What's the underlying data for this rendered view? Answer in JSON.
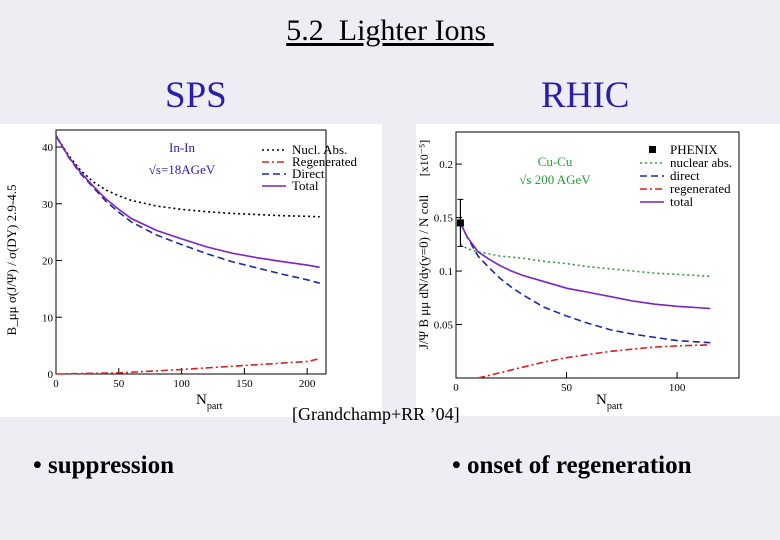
{
  "slide": {
    "title": "5.2  Lighter Ions ",
    "left_label": "SPS",
    "right_label": "RHIC",
    "citation": "[Grandchamp+RR ’04]",
    "bullet_left": "• suppression",
    "bullet_right": "• onset of regeneration"
  },
  "chart_data": [
    {
      "type": "line",
      "title": "In-In",
      "subtitle": "√s=18AGeV",
      "xlabel": "N",
      "xlabel_sub": "part",
      "ylabel": "B_μμ σ(J/Ψ) / σ(DY) 2.9-4.5",
      "xlim": [
        0,
        215
      ],
      "ylim": [
        0,
        43
      ],
      "xticks": [
        0,
        50,
        100,
        150,
        200
      ],
      "yticks": [
        0,
        10,
        20,
        30,
        40
      ],
      "legend_position": "top-right",
      "series": [
        {
          "name": "Nucl. Abs.",
          "style": "dotted",
          "color": "#000000",
          "x": [
            0,
            10,
            20,
            30,
            40,
            50,
            60,
            80,
            100,
            120,
            140,
            160,
            180,
            200,
            210
          ],
          "y": [
            42,
            38.5,
            35.8,
            33.8,
            32.4,
            31.4,
            30.6,
            29.6,
            29.0,
            28.6,
            28.3,
            28.1,
            27.9,
            27.8,
            27.7
          ]
        },
        {
          "name": "Regenerated",
          "style": "dashdot",
          "color": "#d42020",
          "x": [
            0,
            50,
            100,
            150,
            200,
            210
          ],
          "y": [
            0,
            0.2,
            0.8,
            1.5,
            2.2,
            2.7
          ]
        },
        {
          "name": "Direct",
          "style": "dashed",
          "color": "#1a2aa0",
          "x": [
            0,
            10,
            20,
            30,
            40,
            50,
            60,
            80,
            100,
            120,
            140,
            160,
            180,
            200,
            210
          ],
          "y": [
            42,
            38.2,
            35.2,
            32.8,
            30.4,
            28.5,
            26.8,
            24.5,
            22.8,
            21.2,
            19.8,
            18.7,
            17.6,
            16.6,
            16.0
          ]
        },
        {
          "name": "Total",
          "style": "solid",
          "color": "#7a22c2",
          "x": [
            0,
            10,
            20,
            30,
            40,
            50,
            60,
            80,
            100,
            120,
            140,
            160,
            180,
            200,
            210
          ],
          "y": [
            42,
            38.3,
            35.4,
            33.0,
            30.8,
            29.0,
            27.4,
            25.3,
            23.8,
            22.4,
            21.3,
            20.5,
            19.8,
            19.2,
            18.8
          ]
        }
      ]
    },
    {
      "type": "line",
      "title": "Cu-Cu",
      "subtitle": "√s   200 AGeV",
      "xlabel": "N",
      "xlabel_sub": "part",
      "ylabel": "J/Ψ B μμ dN/dy(y=0) / N coll",
      "ylabel_scale": "[x10⁻⁵]",
      "xlim": [
        0,
        128
      ],
      "ylim": [
        0,
        0.23
      ],
      "xticks": [
        0,
        50,
        100
      ],
      "yticks": [
        0.05,
        0.1,
        0.15,
        0.2
      ],
      "legend_position": "top-right",
      "data_points": [
        {
          "name": "PHENIX",
          "x": [
            2
          ],
          "y": [
            0.145
          ],
          "yerr": [
            0.022
          ]
        }
      ],
      "series": [
        {
          "name": "nuclear abs.",
          "style": "dotted",
          "color": "#2a9a3a",
          "x": [
            2,
            5,
            10,
            15,
            20,
            30,
            40,
            50,
            60,
            70,
            80,
            90,
            100,
            115
          ],
          "y": [
            0.125,
            0.121,
            0.118,
            0.116,
            0.114,
            0.112,
            0.109,
            0.107,
            0.104,
            0.102,
            0.1,
            0.098,
            0.097,
            0.095
          ]
        },
        {
          "name": "direct",
          "style": "dashed",
          "color": "#1a2aa0",
          "x": [
            2,
            5,
            10,
            15,
            20,
            25,
            30,
            40,
            50,
            60,
            70,
            80,
            90,
            100,
            115
          ],
          "y": [
            0.145,
            0.132,
            0.114,
            0.103,
            0.093,
            0.085,
            0.078,
            0.066,
            0.058,
            0.051,
            0.045,
            0.041,
            0.038,
            0.035,
            0.033
          ]
        },
        {
          "name": "regenerated",
          "style": "dashdot",
          "color": "#d42020",
          "x": [
            10,
            20,
            30,
            40,
            50,
            60,
            70,
            80,
            90,
            100,
            115
          ],
          "y": [
            0,
            0.005,
            0.01,
            0.015,
            0.019,
            0.022,
            0.025,
            0.027,
            0.029,
            0.03,
            0.031
          ]
        },
        {
          "name": "total",
          "style": "solid",
          "color": "#7a22c2",
          "x": [
            2,
            5,
            10,
            15,
            20,
            25,
            30,
            40,
            50,
            60,
            70,
            80,
            90,
            100,
            115
          ],
          "y": [
            0.145,
            0.132,
            0.118,
            0.111,
            0.105,
            0.1,
            0.096,
            0.09,
            0.084,
            0.08,
            0.076,
            0.072,
            0.069,
            0.067,
            0.065
          ]
        }
      ]
    }
  ]
}
